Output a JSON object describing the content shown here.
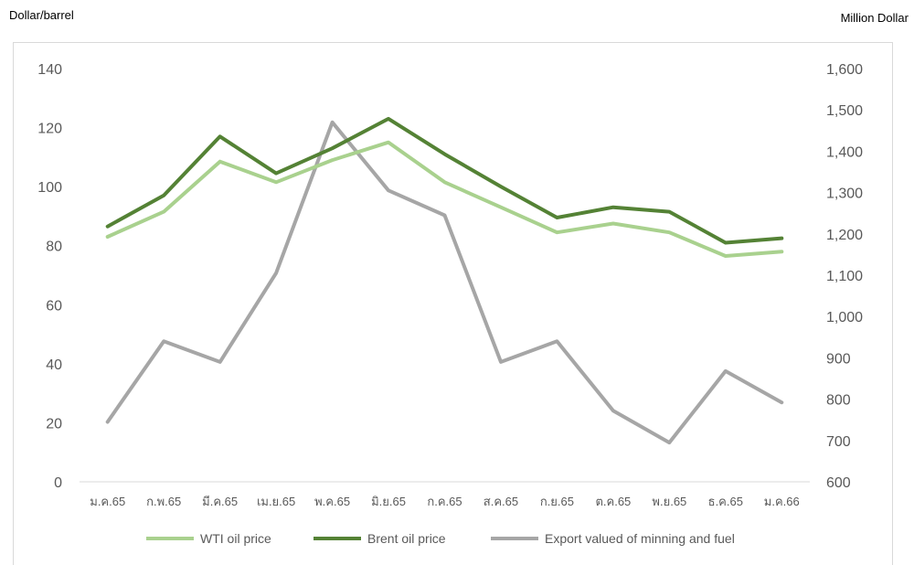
{
  "units": {
    "left": "Dollar/barrel",
    "right": "Million Dollar"
  },
  "chart_data": {
    "type": "line",
    "categories": [
      "ม.ค.65",
      "ก.พ.65",
      "มี.ค.65",
      "เม.ย.65",
      "พ.ค.65",
      "มิ.ย.65",
      "ก.ค.65",
      "ส.ค.65",
      "ก.ย.65",
      "ต.ค.65",
      "พ.ย.65",
      "ธ.ค.65",
      "ม.ค.66"
    ],
    "y_left": {
      "label": "Dollar/barrel",
      "ylim": [
        0,
        140
      ],
      "ticks": [
        "0",
        "20",
        "40",
        "60",
        "80",
        "100",
        "120",
        "140"
      ]
    },
    "y_right": {
      "label": "Million Dollar",
      "ylim": [
        600,
        1600
      ],
      "ticks": [
        "600",
        "700",
        "800",
        "900",
        "1,000",
        "1,100",
        "1,200",
        "1,300",
        "1,400",
        "1,500",
        "1,600"
      ]
    },
    "series": [
      {
        "name": "WTI oil price",
        "axis": "left",
        "color": "#a9d18e",
        "values": [
          83,
          91.5,
          108.5,
          101.5,
          109,
          115,
          101.5,
          93,
          84.5,
          87.5,
          84.5,
          76.5,
          78
        ]
      },
      {
        "name": "Brent oil price",
        "axis": "left",
        "color": "#548235",
        "values": [
          86.5,
          97,
          117,
          104.5,
          113,
          123,
          111,
          100,
          89.5,
          93,
          91.5,
          81,
          82.5
        ]
      },
      {
        "name": "Export valued of minning and fuel",
        "axis": "right",
        "color": "#a6a6a6",
        "values": [
          745,
          940,
          890,
          1105,
          1470,
          1305,
          1245,
          890,
          940,
          772,
          695,
          868,
          792
        ]
      }
    ],
    "grid": false,
    "legend_position": "bottom"
  }
}
